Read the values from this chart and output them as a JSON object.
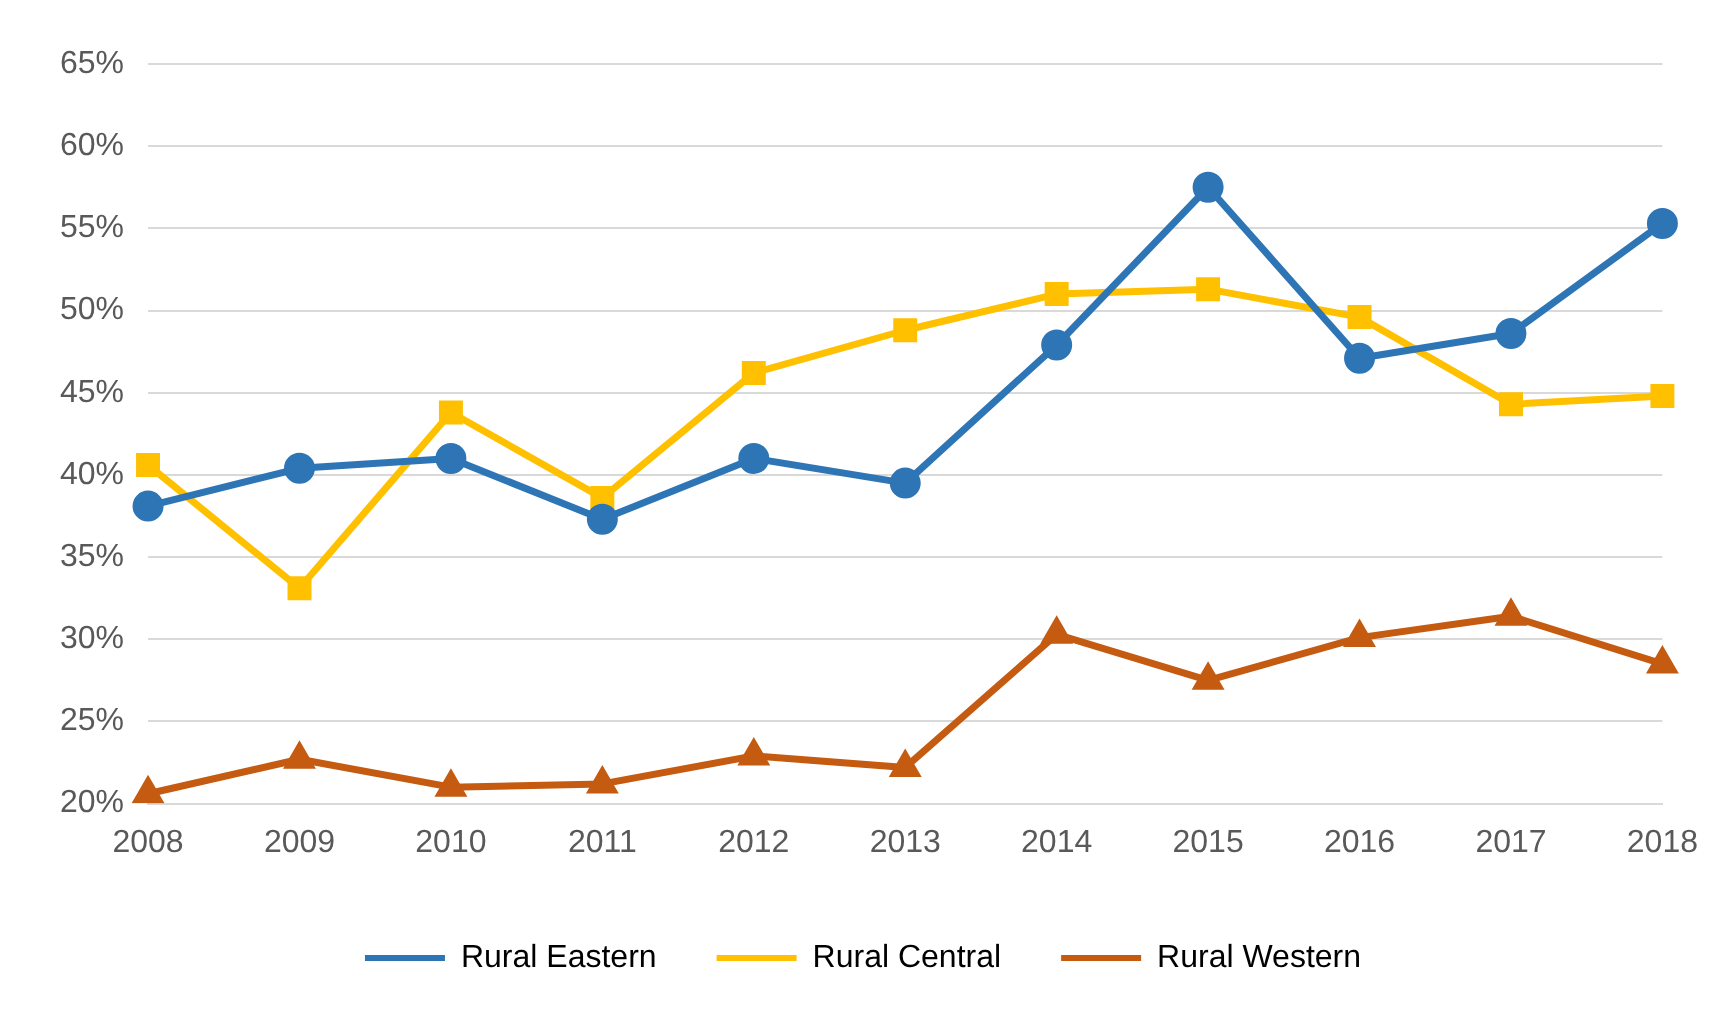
{
  "chart_data": {
    "type": "line",
    "categories": [
      "2008",
      "2009",
      "2010",
      "2011",
      "2012",
      "2013",
      "2014",
      "2015",
      "2016",
      "2017",
      "2018"
    ],
    "series": [
      {
        "name": "Rural Eastern",
        "color": "#2e75b6",
        "marker": "circle",
        "values": [
          38.1,
          40.4,
          41.0,
          37.3,
          41.0,
          39.5,
          47.9,
          57.5,
          47.1,
          48.6,
          55.3
        ]
      },
      {
        "name": "Rural Central",
        "color": "#ffc000",
        "marker": "square",
        "values": [
          40.6,
          33.1,
          43.8,
          38.6,
          46.2,
          48.8,
          51.0,
          51.3,
          49.6,
          44.3,
          44.8
        ]
      },
      {
        "name": "Rural Western",
        "color": "#c55a11",
        "marker": "triangle",
        "values": [
          20.6,
          22.7,
          21.0,
          21.2,
          22.9,
          22.2,
          30.3,
          27.5,
          30.1,
          31.4,
          28.5
        ]
      }
    ],
    "ylim": [
      20,
      65
    ],
    "yticks": [
      {
        "value": 20,
        "label": "20%"
      },
      {
        "value": 25,
        "label": "25%"
      },
      {
        "value": 30,
        "label": "30%"
      },
      {
        "value": 35,
        "label": "35%"
      },
      {
        "value": 40,
        "label": "40%"
      },
      {
        "value": 45,
        "label": "45%"
      },
      {
        "value": 50,
        "label": "50%"
      },
      {
        "value": 55,
        "label": "55%"
      },
      {
        "value": 60,
        "label": "60%"
      },
      {
        "value": 65,
        "label": "65%"
      }
    ],
    "grid": "y",
    "legend": "bottom",
    "line_style": "solid"
  }
}
